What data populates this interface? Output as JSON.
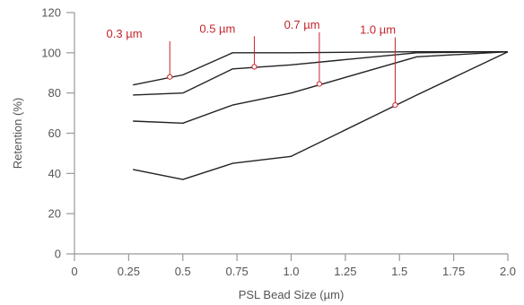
{
  "chart_data": {
    "type": "line",
    "title": "",
    "xlabel": "PSL Bead Size (µm)",
    "ylabel": "Retention (%)",
    "xlim": [
      0,
      2.0
    ],
    "ylim": [
      0,
      120
    ],
    "x_ticks": [
      0,
      0.25,
      0.5,
      0.75,
      1.0,
      1.25,
      1.5,
      1.75,
      2.0
    ],
    "x_tick_labels": [
      "0",
      "0.25",
      "0.5",
      "0.75",
      "1.0",
      "1.25",
      "1.5",
      "1.75",
      "2.0"
    ],
    "y_ticks": [
      0,
      20,
      40,
      60,
      80,
      100,
      120
    ],
    "y_tick_labels": [
      "0",
      "20",
      "40",
      "60",
      "80",
      "100",
      "120"
    ],
    "grid": false,
    "series": [
      {
        "x": [
          0.27,
          0.5,
          0.73,
          1.0,
          1.58,
          2.0
        ],
        "y": [
          84,
          89,
          100,
          100,
          100.5,
          100.5
        ]
      },
      {
        "x": [
          0.27,
          0.5,
          0.73,
          1.0,
          1.58,
          2.0
        ],
        "y": [
          79,
          80,
          92,
          94,
          100,
          100.5
        ]
      },
      {
        "x": [
          0.27,
          0.5,
          0.73,
          1.0,
          1.58,
          2.0
        ],
        "y": [
          66,
          65,
          74,
          80,
          98,
          100.5
        ]
      },
      {
        "x": [
          0.27,
          0.5,
          0.73,
          1.0,
          1.58,
          2.0
        ],
        "y": [
          42,
          37,
          45,
          48.5,
          79,
          100.5
        ]
      }
    ],
    "annotations": [
      {
        "label": "0.3 µm",
        "x": 0.44,
        "y": 88,
        "label_x": 0.23,
        "label_y": 107.5
      },
      {
        "label": "0.5 µm",
        "x": 0.83,
        "y": 93,
        "label_x": 0.66,
        "label_y": 110
      },
      {
        "label": "0.7 µm",
        "x": 1.13,
        "y": 84.5,
        "label_x": 1.05,
        "label_y": 112
      },
      {
        "label": "1.0 µm",
        "x": 1.48,
        "y": 74,
        "label_x": 1.4,
        "label_y": 109.5
      }
    ],
    "colors": {
      "series_line": "#222222",
      "annotation": "#c4252c",
      "axis": "#999999",
      "text": "#555555"
    }
  }
}
